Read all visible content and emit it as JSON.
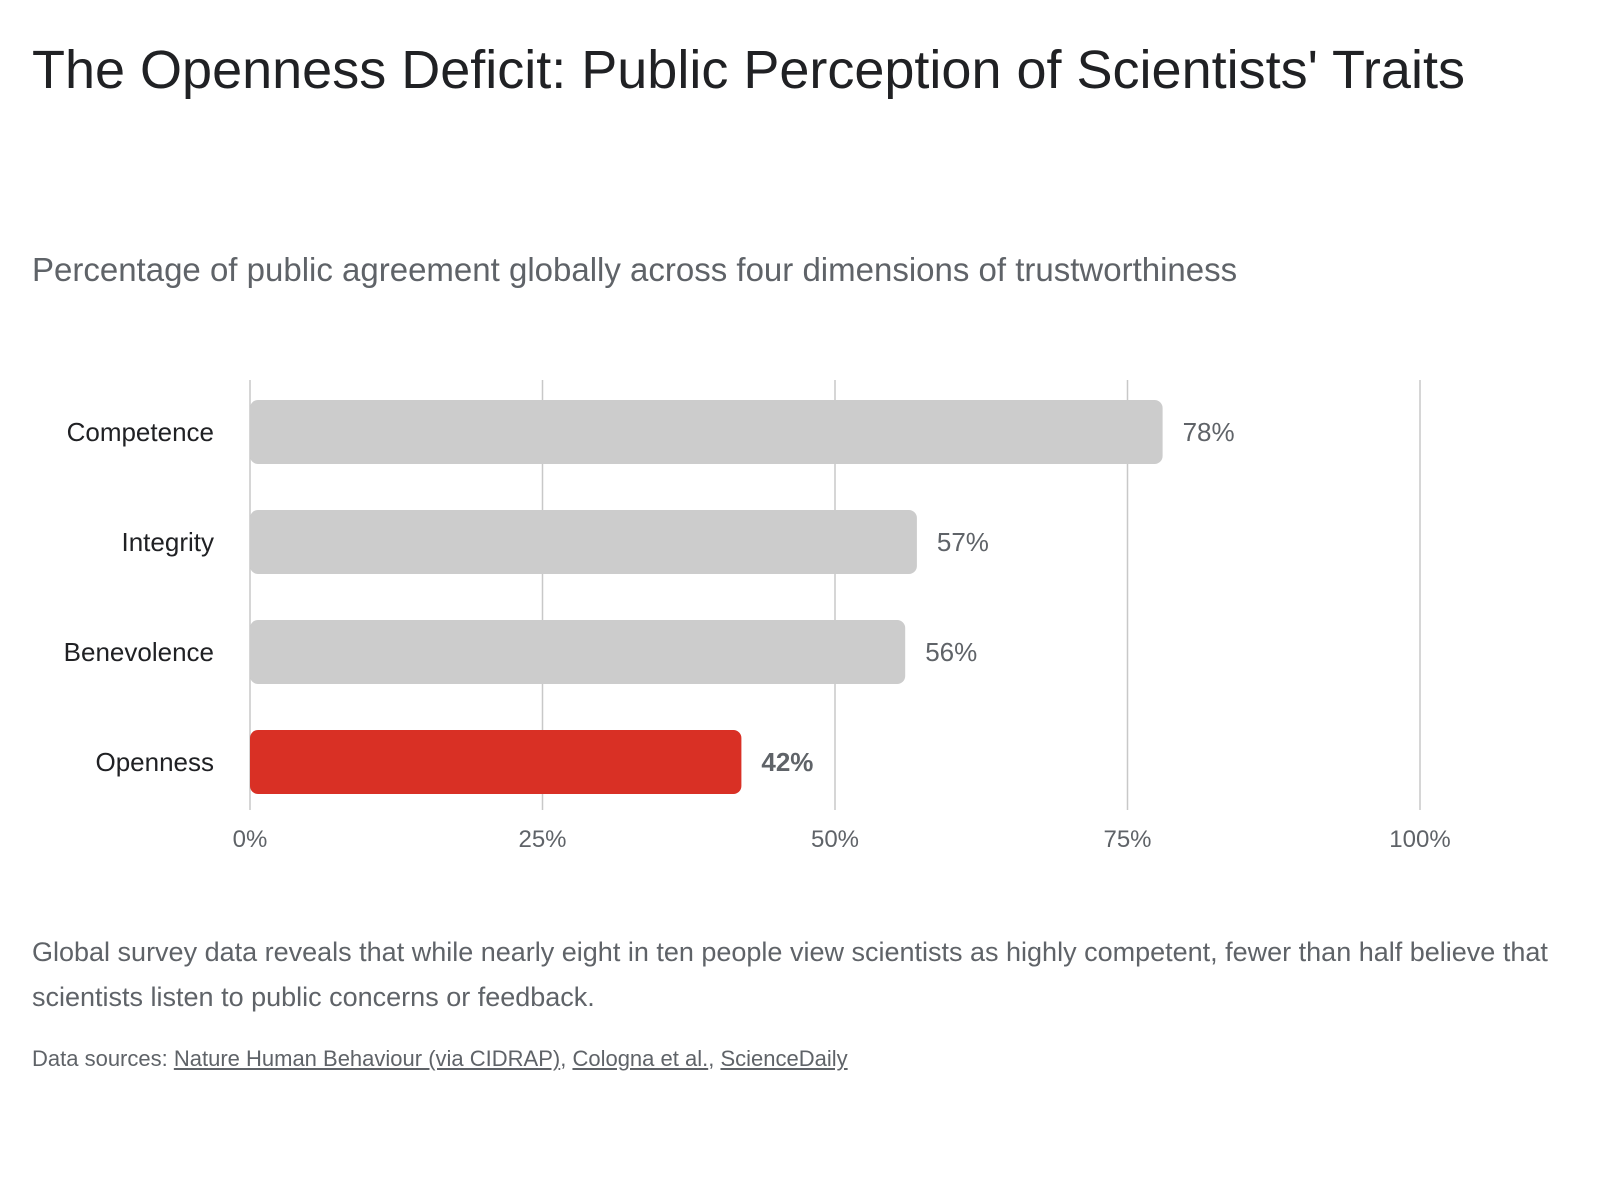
{
  "title": "The Openness Deficit: Public Perception of Scientists' Traits",
  "subtitle": "Percentage of public agreement globally across four dimensions of trustworthiness",
  "caption": "Global survey data reveals that while nearly eight in ten people view scientists as highly competent, fewer than half believe that scientists listen to public concerns or feedback.",
  "sources": {
    "prefix": "Data sources: ",
    "links": [
      "Nature Human Behaviour (via CIDRAP)",
      "Cologna et al.",
      "ScienceDaily"
    ],
    "separator": ", "
  },
  "colors": {
    "default_bar": "#cccccc",
    "highlight_bar": "#d93025",
    "grid": "#c8c8c8"
  },
  "chart_data": {
    "type": "bar",
    "orientation": "horizontal",
    "categories": [
      "Competence",
      "Integrity",
      "Benevolence",
      "Openness"
    ],
    "values": [
      78,
      57,
      56,
      42
    ],
    "value_labels": [
      "78%",
      "57%",
      "56%",
      "42%"
    ],
    "highlight": "Openness",
    "xlim": [
      0,
      100
    ],
    "xticks": [
      0,
      25,
      50,
      75,
      100
    ],
    "xtick_labels": [
      "0%",
      "25%",
      "50%",
      "75%",
      "100%"
    ],
    "grid": true
  }
}
